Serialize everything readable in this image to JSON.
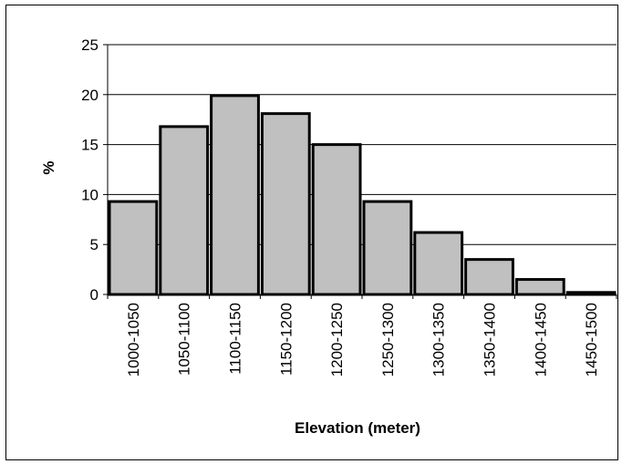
{
  "chart_data": {
    "type": "bar",
    "title": "",
    "xlabel": "Elevation (meter)",
    "ylabel": "%",
    "categories": [
      "1000-1050",
      "1050-1100",
      "1100-1150",
      "1150-1200",
      "1200-1250",
      "1250-1300",
      "1300-1350",
      "1350-1400",
      "1400-1450",
      "1450-1500"
    ],
    "values": [
      9.3,
      16.8,
      19.9,
      18.1,
      15.0,
      9.3,
      6.2,
      3.5,
      1.5,
      0.2
    ],
    "ylim": [
      0,
      25
    ],
    "yticks": [
      0,
      5,
      10,
      15,
      20,
      25
    ],
    "grid": true,
    "legend": "none",
    "colors": {
      "bar_fill": "#c0c0c0",
      "bar_edge": "#000000",
      "grid": "#000000"
    }
  }
}
